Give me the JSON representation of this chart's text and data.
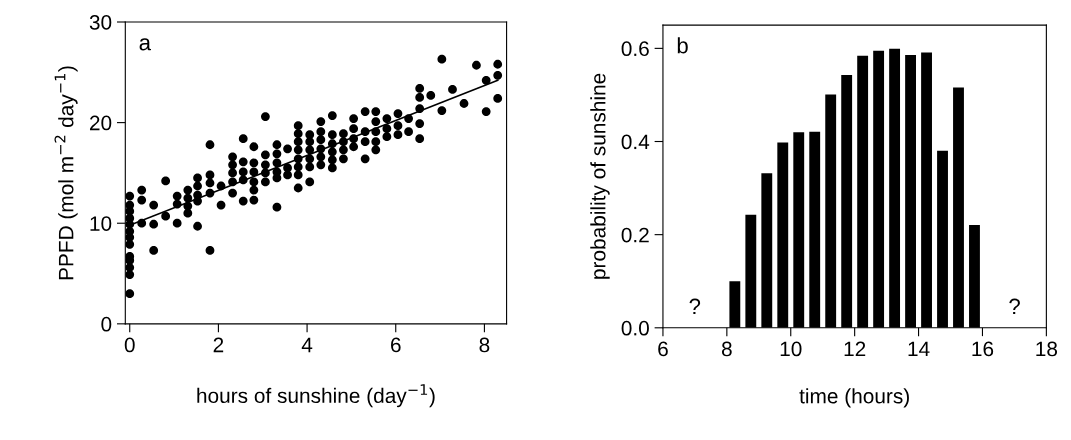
{
  "chart_data": [
    {
      "type": "scatter",
      "title": "a",
      "xlabel": "hours of sunshine (day$^{−1}$)",
      "ylabel": "PPFD (mol m$^{−2}$ day$^{−1}$)",
      "xlim": [
        -0.1,
        8.5
      ],
      "ylim": [
        0,
        30
      ],
      "xticks": [
        0,
        2,
        4,
        6,
        8
      ],
      "yticks": [
        0,
        10,
        20,
        30
      ],
      "grid": false,
      "legend": false,
      "series": [
        {
          "marker": "circle",
          "color": "#000000",
          "x": [
            0,
            0,
            0,
            0,
            0,
            0,
            0,
            0,
            0,
            0,
            0,
            0,
            0,
            0.27,
            0.27,
            0.27,
            0.54,
            0.54,
            0.54,
            0.81,
            0.81,
            1.07,
            1.07,
            1.07,
            1.31,
            1.31,
            1.31,
            1.31,
            1.53,
            1.53,
            1.53,
            1.53,
            1.53,
            1.81,
            1.81,
            1.81,
            1.81,
            1.81,
            2.06,
            2.06,
            2.32,
            2.32,
            2.32,
            2.32,
            2.32,
            2.56,
            2.56,
            2.56,
            2.56,
            2.56,
            2.8,
            2.8,
            2.8,
            2.8,
            2.8,
            2.8,
            3.06,
            3.06,
            3.06,
            3.06,
            3.06,
            3.32,
            3.32,
            3.32,
            3.32,
            3.32,
            3.32,
            3.56,
            3.56,
            3.56,
            3.8,
            3.8,
            3.8,
            3.8,
            3.8,
            3.8,
            3.8,
            3.8,
            4.06,
            4.06,
            4.06,
            4.06,
            4.06,
            4.06,
            4.31,
            4.31,
            4.31,
            4.31,
            4.31,
            4.31,
            4.57,
            4.57,
            4.57,
            4.57,
            4.57,
            4.57,
            4.82,
            4.82,
            4.82,
            4.82,
            5.05,
            5.05,
            5.05,
            5.05,
            5.31,
            5.31,
            5.31,
            5.31,
            5.55,
            5.55,
            5.55,
            5.55,
            5.55,
            5.8,
            5.8,
            5.8,
            6.05,
            6.05,
            6.05,
            6.29,
            6.29,
            6.54,
            6.54,
            6.54,
            6.54,
            6.54,
            6.79,
            7.04,
            7.04,
            7.28,
            7.54,
            7.82,
            8.04,
            8.04,
            8.3,
            8.3,
            8.3
          ],
          "values": [
            12.7,
            11.8,
            11.2,
            10.5,
            9.9,
            9.2,
            8.6,
            7.9,
            6.7,
            6.3,
            5.6,
            4.9,
            3.0,
            13.3,
            12.3,
            10.0,
            11.8,
            9.9,
            7.3,
            14.2,
            10.7,
            12.7,
            11.9,
            10.0,
            13.3,
            12.5,
            11.7,
            11.0,
            14.5,
            13.7,
            12.8,
            12.2,
            9.7,
            17.8,
            14.8,
            14.0,
            13.0,
            7.3,
            13.7,
            11.8,
            16.6,
            15.8,
            15.0,
            14.1,
            13.0,
            18.4,
            16.1,
            15.1,
            14.3,
            12.2,
            17.6,
            16.0,
            15.1,
            14.1,
            13.3,
            12.3,
            20.6,
            16.8,
            15.8,
            15.0,
            14.1,
            17.8,
            16.9,
            16.0,
            15.1,
            14.5,
            11.6,
            17.4,
            15.5,
            14.8,
            19.7,
            18.9,
            18.1,
            17.3,
            16.4,
            15.6,
            14.8,
            13.5,
            18.8,
            18.1,
            17.3,
            16.4,
            15.6,
            14.1,
            20.1,
            19.1,
            18.3,
            17.4,
            16.6,
            15.8,
            20.7,
            18.8,
            17.9,
            17.1,
            16.3,
            15.5,
            18.9,
            18.1,
            17.3,
            16.4,
            20.4,
            19.4,
            18.4,
            17.6,
            21.1,
            19.1,
            18.1,
            16.4,
            21.1,
            20.1,
            19.1,
            18.1,
            17.3,
            20.4,
            19.4,
            18.6,
            20.9,
            19.7,
            18.8,
            20.4,
            19.1,
            23.4,
            22.5,
            21.4,
            19.9,
            18.4,
            22.7,
            26.3,
            21.2,
            23.3,
            21.9,
            25.7,
            24.2,
            21.1,
            25.8,
            24.7,
            22.4
          ]
        },
        {
          "type": "line",
          "color": "#000000",
          "line_style": "solid",
          "x": [
            0,
            8.3
          ],
          "values": [
            9.8,
            24.2
          ]
        }
      ]
    },
    {
      "type": "bar",
      "title": "b",
      "xlabel": "time (hours)",
      "ylabel": "probability of sunshine",
      "xlim": [
        6,
        18
      ],
      "ylim": [
        0,
        0.65
      ],
      "xticks": [
        6,
        8,
        10,
        12,
        14,
        16,
        18
      ],
      "yticks": [
        {
          "value": 0,
          "label": "0.0"
        },
        0.2,
        0.4,
        0.6
      ],
      "grid": false,
      "legend": false,
      "annotations": [
        "?",
        "?"
      ],
      "series": [
        {
          "color": "#000000",
          "x": [
            8.25,
            8.75,
            9.25,
            9.75,
            10.25,
            10.75,
            11.25,
            11.75,
            12.25,
            12.75,
            13.25,
            13.75,
            14.25,
            14.75,
            15.25,
            15.75
          ],
          "values": [
            0.1,
            0.243,
            0.332,
            0.398,
            0.42,
            0.421,
            0.501,
            0.543,
            0.584,
            0.595,
            0.599,
            0.586,
            0.591,
            0.38,
            0.516,
            0.221
          ]
        }
      ]
    }
  ]
}
